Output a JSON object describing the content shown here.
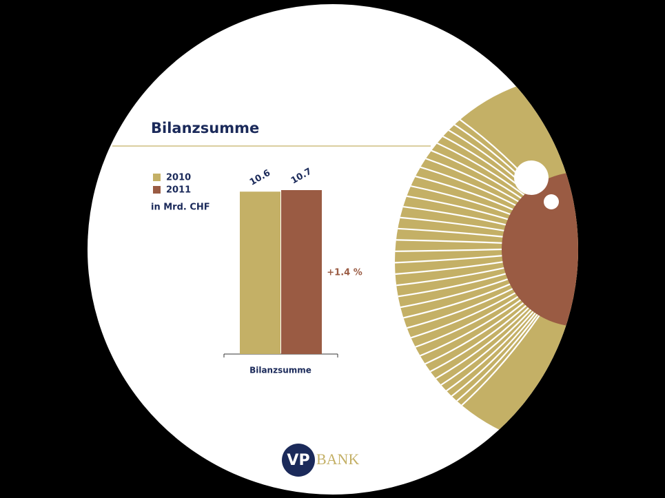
{
  "chart_data": {
    "type": "bar",
    "title": "Bilanzsumme",
    "unit_label": "in Mrd. CHF",
    "categories": [
      "Bilanzsumme"
    ],
    "series": [
      {
        "name": "2010",
        "color": "#c4b066",
        "values": [
          10.6
        ]
      },
      {
        "name": "2011",
        "color": "#9a5b43",
        "values": [
          10.7
        ]
      }
    ],
    "ylim": [
      0,
      10.7
    ],
    "annotation": "+1.4 %"
  },
  "logo": {
    "left": "VP",
    "right": "BANK"
  }
}
